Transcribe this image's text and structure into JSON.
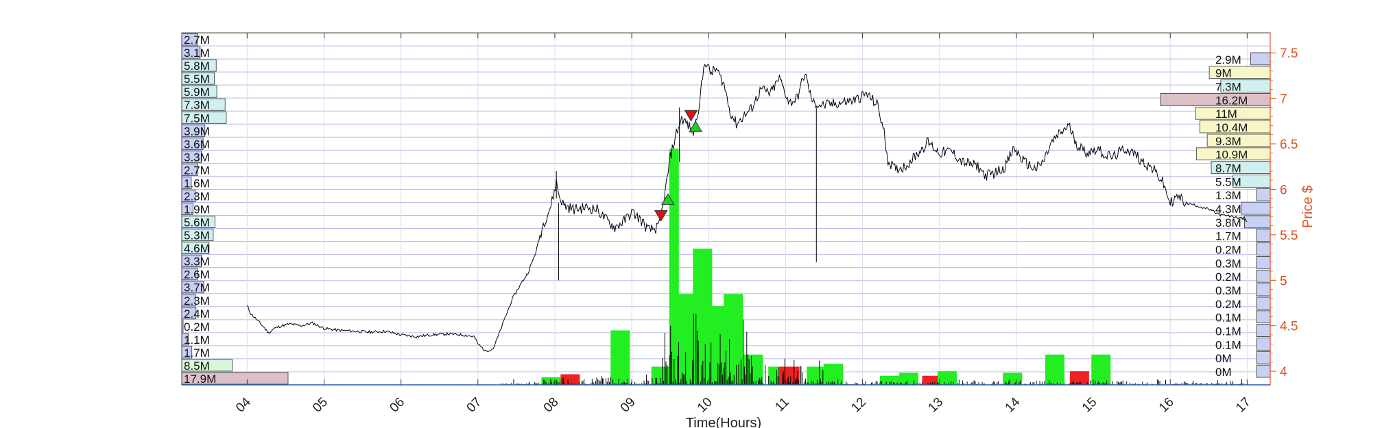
{
  "chart_data": {
    "type": "line",
    "title": "",
    "xlabel": "Time(Hours)",
    "ylabel_right": "Price $",
    "x_ticks": [
      "04",
      "05",
      "06",
      "07",
      "08",
      "09",
      "10",
      "11",
      "12",
      "13",
      "14",
      "15",
      "16",
      "17"
    ],
    "x_range": [
      3.15,
      17.3
    ],
    "y_ticks": [
      4,
      4.5,
      5,
      5.5,
      6,
      6.5,
      7,
      7.5
    ],
    "y_range": [
      3.85,
      7.72
    ],
    "colors": {
      "price_line": "#000000",
      "axis_right": "#d9531e",
      "grid": "#b8b8ee",
      "buy_marker": "#22cc22",
      "sell_marker": "#dd1111",
      "volume_up": "#22ee22",
      "volume_down": "#ee2222",
      "profile_blue": "#c8d0f4",
      "profile_cyan": "#d0f0f0",
      "profile_green": "#d8f8d8",
      "profile_yellow": "#f8f6c8",
      "profile_red": "#dcc0c8"
    },
    "left_volume_profile": [
      {
        "label": "2.7M",
        "value": 2.7,
        "color": "blue"
      },
      {
        "label": "3.1M",
        "value": 3.1,
        "color": "blue"
      },
      {
        "label": "5.8M",
        "value": 5.8,
        "color": "cyan"
      },
      {
        "label": "5.5M",
        "value": 5.5,
        "color": "cyan"
      },
      {
        "label": "5.9M",
        "value": 5.9,
        "color": "cyan"
      },
      {
        "label": "7.3M",
        "value": 7.3,
        "color": "cyan"
      },
      {
        "label": "7.5M",
        "value": 7.5,
        "color": "cyan"
      },
      {
        "label": "3.9M",
        "value": 3.9,
        "color": "blue"
      },
      {
        "label": "3.6M",
        "value": 3.6,
        "color": "blue"
      },
      {
        "label": "3.3M",
        "value": 3.3,
        "color": "blue"
      },
      {
        "label": "2.7M",
        "value": 2.7,
        "color": "blue"
      },
      {
        "label": "1.6M",
        "value": 1.6,
        "color": "blue"
      },
      {
        "label": "2.3M",
        "value": 2.3,
        "color": "blue"
      },
      {
        "label": "1.9M",
        "value": 1.9,
        "color": "blue"
      },
      {
        "label": "5.6M",
        "value": 5.6,
        "color": "cyan"
      },
      {
        "label": "5.3M",
        "value": 5.3,
        "color": "cyan"
      },
      {
        "label": "4.6M",
        "value": 4.6,
        "color": "cyan"
      },
      {
        "label": "3.3M",
        "value": 3.3,
        "color": "blue"
      },
      {
        "label": "2.6M",
        "value": 2.6,
        "color": "blue"
      },
      {
        "label": "3.7M",
        "value": 3.7,
        "color": "blue"
      },
      {
        "label": "2.3M",
        "value": 2.3,
        "color": "blue"
      },
      {
        "label": "2.4M",
        "value": 2.4,
        "color": "blue"
      },
      {
        "label": "0.2M",
        "value": 0.2,
        "color": "blue"
      },
      {
        "label": "1.1M",
        "value": 1.1,
        "color": "blue"
      },
      {
        "label": "1.7M",
        "value": 1.7,
        "color": "blue"
      },
      {
        "label": "8.5M",
        "value": 8.5,
        "color": "green"
      },
      {
        "label": "17.9M",
        "value": 17.9,
        "color": "red"
      }
    ],
    "right_volume_profile": [
      {
        "label": "2.9M",
        "value": 2.9,
        "color": "blue"
      },
      {
        "label": "9M",
        "value": 9.0,
        "color": "yellow"
      },
      {
        "label": "7.3M",
        "value": 7.3,
        "color": "cyan"
      },
      {
        "label": "16.2M",
        "value": 16.2,
        "color": "red"
      },
      {
        "label": "11M",
        "value": 11.0,
        "color": "yellow"
      },
      {
        "label": "10.4M",
        "value": 10.4,
        "color": "yellow"
      },
      {
        "label": "9.3M",
        "value": 9.3,
        "color": "yellow"
      },
      {
        "label": "10.9M",
        "value": 10.9,
        "color": "yellow"
      },
      {
        "label": "8.7M",
        "value": 8.7,
        "color": "cyan"
      },
      {
        "label": "5.5M",
        "value": 5.5,
        "color": "cyan"
      },
      {
        "label": "1.3M",
        "value": 1.3,
        "color": "blue"
      },
      {
        "label": "4.3M",
        "value": 4.3,
        "color": "blue"
      },
      {
        "label": "3.8M",
        "value": 3.8,
        "color": "blue"
      },
      {
        "label": "1.7M",
        "value": 1.7,
        "color": "blue"
      },
      {
        "label": "0.2M",
        "value": 0.2,
        "color": "blue"
      },
      {
        "label": "0.3M",
        "value": 0.3,
        "color": "blue"
      },
      {
        "label": "0.2M",
        "value": 0.2,
        "color": "blue"
      },
      {
        "label": "0.3M",
        "value": 0.3,
        "color": "blue"
      },
      {
        "label": "0.2M",
        "value": 0.2,
        "color": "blue"
      },
      {
        "label": "0.1M",
        "value": 0.1,
        "color": "blue"
      },
      {
        "label": "0.1M",
        "value": 0.1,
        "color": "blue"
      },
      {
        "label": "0.1M",
        "value": 0.1,
        "color": "blue"
      },
      {
        "label": "0M",
        "value": 0.0,
        "color": "blue"
      },
      {
        "label": "0M",
        "value": 0.0,
        "color": "blue"
      }
    ],
    "price_series": [
      [
        4.0,
        4.72
      ],
      [
        4.05,
        4.63
      ],
      [
        4.12,
        4.57
      ],
      [
        4.2,
        4.5
      ],
      [
        4.28,
        4.42
      ],
      [
        4.35,
        4.47
      ],
      [
        4.45,
        4.5
      ],
      [
        4.55,
        4.52
      ],
      [
        4.7,
        4.5
      ],
      [
        4.85,
        4.53
      ],
      [
        5.0,
        4.47
      ],
      [
        5.2,
        4.45
      ],
      [
        5.4,
        4.44
      ],
      [
        5.6,
        4.43
      ],
      [
        5.8,
        4.44
      ],
      [
        6.0,
        4.4
      ],
      [
        6.2,
        4.38
      ],
      [
        6.4,
        4.4
      ],
      [
        6.6,
        4.41
      ],
      [
        6.8,
        4.4
      ],
      [
        6.95,
        4.38
      ],
      [
        7.0,
        4.3
      ],
      [
        7.1,
        4.22
      ],
      [
        7.2,
        4.25
      ],
      [
        7.28,
        4.42
      ],
      [
        7.35,
        4.58
      ],
      [
        7.45,
        4.8
      ],
      [
        7.55,
        4.95
      ],
      [
        7.65,
        5.08
      ],
      [
        7.75,
        5.3
      ],
      [
        7.85,
        5.62
      ],
      [
        7.95,
        5.82
      ],
      [
        8.02,
        6.08
      ],
      [
        8.06,
        5.92
      ],
      [
        8.12,
        5.82
      ],
      [
        8.25,
        5.78
      ],
      [
        8.4,
        5.8
      ],
      [
        8.55,
        5.78
      ],
      [
        8.65,
        5.68
      ],
      [
        8.78,
        5.58
      ],
      [
        8.9,
        5.65
      ],
      [
        9.0,
        5.75
      ],
      [
        9.1,
        5.68
      ],
      [
        9.22,
        5.55
      ],
      [
        9.35,
        5.58
      ],
      [
        9.42,
        5.88
      ],
      [
        9.5,
        6.35
      ],
      [
        9.58,
        6.62
      ],
      [
        9.65,
        6.78
      ],
      [
        9.72,
        6.72
      ],
      [
        9.8,
        6.62
      ],
      [
        9.88,
        6.95
      ],
      [
        9.95,
        7.42
      ],
      [
        10.02,
        7.28
      ],
      [
        10.1,
        7.32
      ],
      [
        10.2,
        7.15
      ],
      [
        10.28,
        6.85
      ],
      [
        10.36,
        6.72
      ],
      [
        10.45,
        6.8
      ],
      [
        10.55,
        6.88
      ],
      [
        10.68,
        7.1
      ],
      [
        10.8,
        7.05
      ],
      [
        10.92,
        7.22
      ],
      [
        11.05,
        6.95
      ],
      [
        11.15,
        7.0
      ],
      [
        11.25,
        7.28
      ],
      [
        11.35,
        6.95
      ],
      [
        11.5,
        6.92
      ],
      [
        11.7,
        6.95
      ],
      [
        11.9,
        6.98
      ],
      [
        12.05,
        7.05
      ],
      [
        12.2,
        6.92
      ],
      [
        12.28,
        6.62
      ],
      [
        12.33,
        6.32
      ],
      [
        12.42,
        6.22
      ],
      [
        12.55,
        6.25
      ],
      [
        12.7,
        6.38
      ],
      [
        12.85,
        6.52
      ],
      [
        13.0,
        6.4
      ],
      [
        13.15,
        6.42
      ],
      [
        13.3,
        6.3
      ],
      [
        13.5,
        6.25
      ],
      [
        13.6,
        6.15
      ],
      [
        13.72,
        6.18
      ],
      [
        13.85,
        6.25
      ],
      [
        13.97,
        6.45
      ],
      [
        14.1,
        6.3
      ],
      [
        14.25,
        6.22
      ],
      [
        14.35,
        6.3
      ],
      [
        14.45,
        6.5
      ],
      [
        14.55,
        6.6
      ],
      [
        14.68,
        6.7
      ],
      [
        14.8,
        6.48
      ],
      [
        14.92,
        6.4
      ],
      [
        15.05,
        6.45
      ],
      [
        15.15,
        6.38
      ],
      [
        15.25,
        6.35
      ],
      [
        15.42,
        6.45
      ],
      [
        15.55,
        6.38
      ],
      [
        15.65,
        6.3
      ],
      [
        15.78,
        6.22
      ],
      [
        15.9,
        6.08
      ],
      [
        16.0,
        5.85
      ],
      [
        16.1,
        5.92
      ],
      [
        16.2,
        5.85
      ],
      [
        16.35,
        5.82
      ],
      [
        16.5,
        5.78
      ],
      [
        16.65,
        5.72
      ],
      [
        16.8,
        5.7
      ],
      [
        16.95,
        5.68
      ],
      [
        17.0,
        5.65
      ]
    ],
    "markers": [
      {
        "type": "sell",
        "x": 9.38,
        "y": 5.72
      },
      {
        "type": "buy",
        "x": 9.47,
        "y": 5.88
      },
      {
        "type": "sell",
        "x": 9.77,
        "y": 6.82
      },
      {
        "type": "buy",
        "x": 9.83,
        "y": 6.68
      }
    ],
    "volume_bars": [
      {
        "x": 7.95,
        "v": 0.025,
        "side": "up"
      },
      {
        "x": 8.2,
        "v": 0.035,
        "side": "down"
      },
      {
        "x": 8.85,
        "v": 0.18,
        "side": "up"
      },
      {
        "x": 9.38,
        "v": 0.06,
        "side": "up"
      },
      {
        "x": 9.55,
        "v": 0.78,
        "side": "up"
      },
      {
        "x": 9.68,
        "v": 0.3,
        "side": "up"
      },
      {
        "x": 9.8,
        "v": 0.14,
        "side": "up"
      },
      {
        "x": 9.92,
        "v": 0.45,
        "side": "up"
      },
      {
        "x": 10.08,
        "v": 0.26,
        "side": "up"
      },
      {
        "x": 10.32,
        "v": 0.3,
        "side": "up"
      },
      {
        "x": 10.58,
        "v": 0.1,
        "side": "up"
      },
      {
        "x": 10.9,
        "v": 0.06,
        "side": "up"
      },
      {
        "x": 11.05,
        "v": 0.06,
        "side": "down"
      },
      {
        "x": 11.4,
        "v": 0.06,
        "side": "up"
      },
      {
        "x": 11.62,
        "v": 0.07,
        "side": "up"
      },
      {
        "x": 12.35,
        "v": 0.03,
        "side": "up"
      },
      {
        "x": 12.6,
        "v": 0.04,
        "side": "up"
      },
      {
        "x": 12.9,
        "v": 0.03,
        "side": "down"
      },
      {
        "x": 13.1,
        "v": 0.045,
        "side": "up"
      },
      {
        "x": 13.95,
        "v": 0.04,
        "side": "up"
      },
      {
        "x": 14.5,
        "v": 0.1,
        "side": "up"
      },
      {
        "x": 14.82,
        "v": 0.045,
        "side": "down"
      },
      {
        "x": 15.1,
        "v": 0.1,
        "side": "up"
      }
    ]
  }
}
